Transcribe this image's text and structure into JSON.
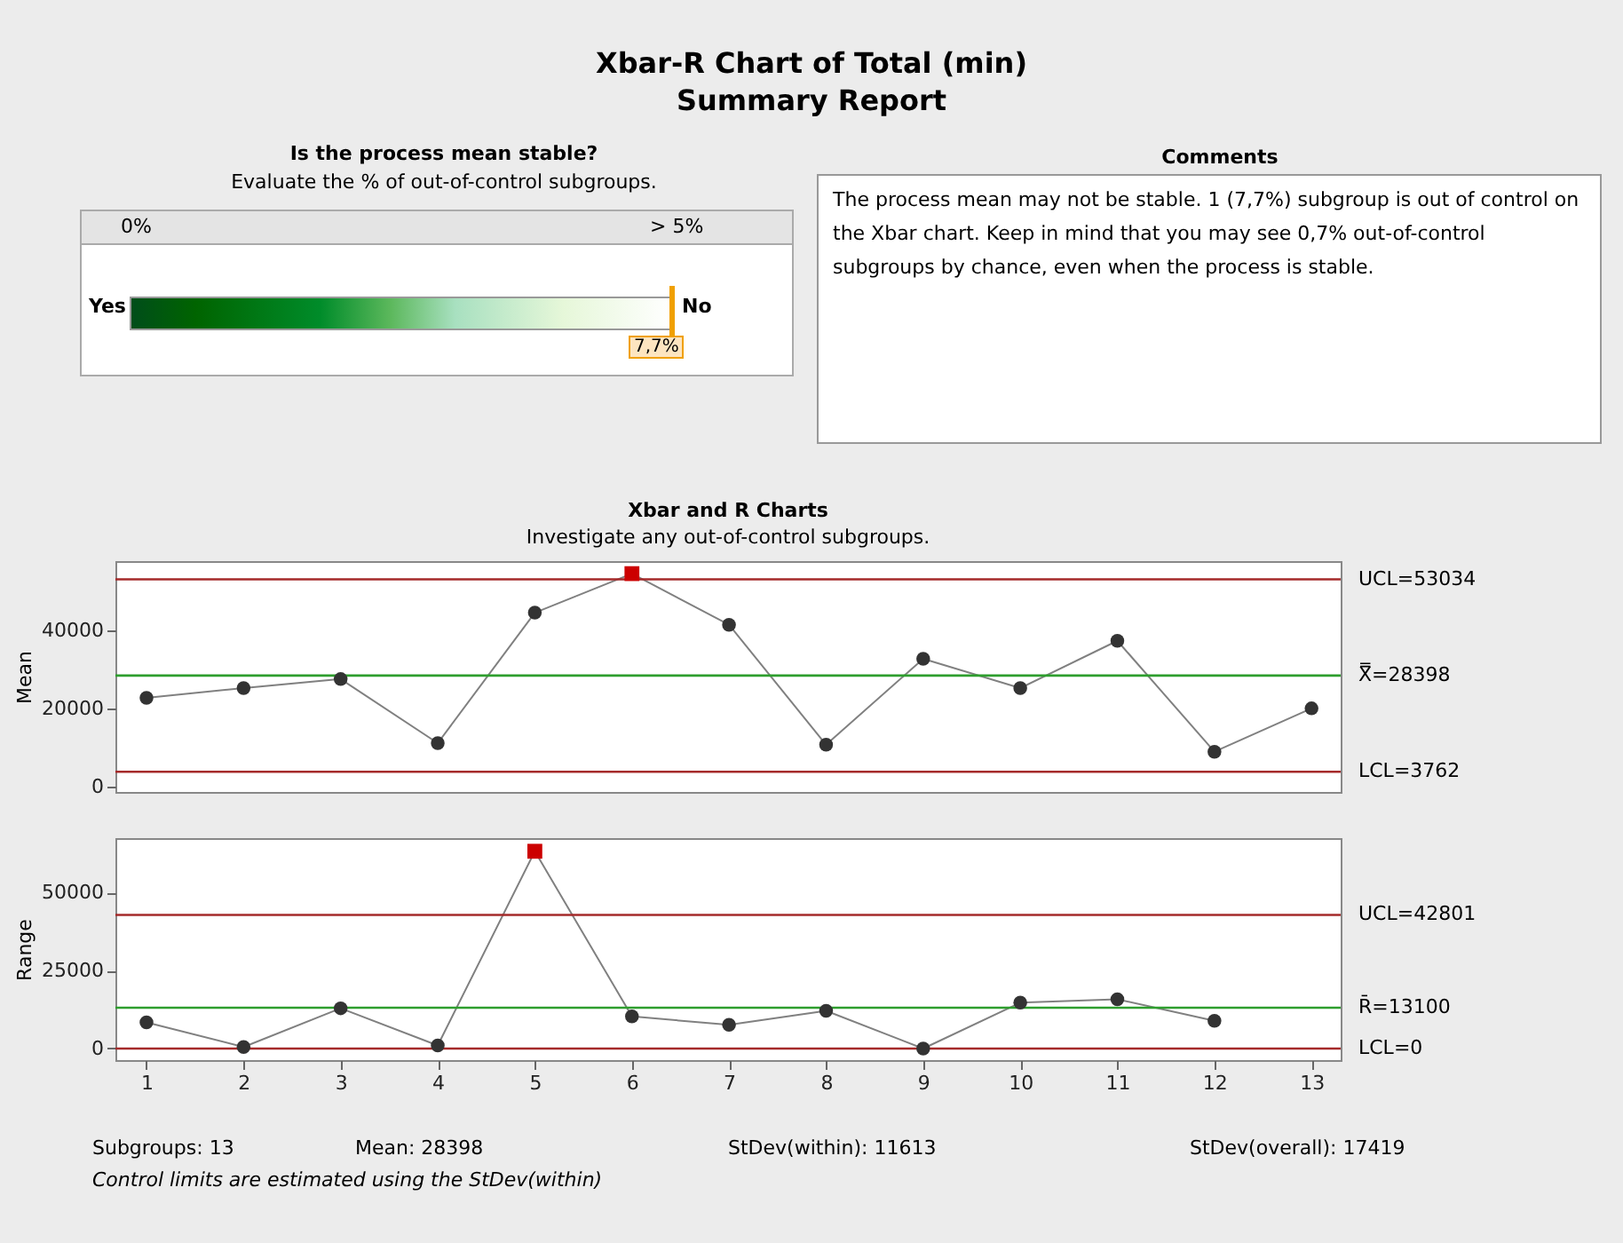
{
  "chart_data": [
    {
      "type": "other",
      "title": "Xbar-R Chart of Total (min)",
      "subtitle": "Summary Report"
    },
    {
      "type": "other",
      "title": "Is the process mean stable?",
      "subtitle": "Evaluate the % of out-of-control subgroups.",
      "annotations": [
        "0%",
        "> 5%",
        "Yes",
        "No",
        "7,7%"
      ]
    },
    {
      "type": "other",
      "title": "Comments",
      "annotations": [
        "The process mean may not be stable. 1 (7,7%) subgroup is out of control on the Xbar chart. Keep in mind that you may see 0,7% out-of-control subgroups by chance, even when the process is stable."
      ]
    },
    {
      "type": "line",
      "title": "Xbar and R Charts",
      "subtitle": "Investigate any out-of-control subgroups.",
      "ylabel": "Mean",
      "x": [
        1,
        2,
        3,
        4,
        5,
        6,
        7,
        8,
        9,
        10,
        11,
        12,
        13
      ],
      "xlim": [
        0.68,
        13.3
      ],
      "xticks": [
        1,
        2,
        3,
        4,
        5,
        6,
        7,
        8,
        9,
        10,
        11,
        12,
        13
      ],
      "ylim": [
        -1400,
        57700
      ],
      "yticks": [
        0,
        20000,
        40000
      ],
      "tick_labels": "y",
      "series": [
        {
          "type": "line",
          "color": "#808080",
          "marker": "none",
          "values": [
            22700,
            25200,
            27500,
            11100,
            44500,
            54500,
            41400,
            10700,
            32700,
            25200,
            37300,
            8900,
            20000
          ]
        },
        {
          "type": "scatter",
          "color": "#333333",
          "marker": "circle",
          "x": [
            1,
            2,
            3,
            4,
            5,
            7,
            8,
            9,
            10,
            11,
            12,
            13
          ],
          "values": [
            22700,
            25200,
            27500,
            11100,
            44500,
            41400,
            10700,
            32700,
            25200,
            37300,
            8900,
            20000
          ]
        },
        {
          "type": "scatter",
          "color": "#cc0000",
          "marker": "square",
          "x": [
            6
          ],
          "values": [
            54500
          ]
        }
      ],
      "ref_lines": [
        {
          "axis": "y",
          "value": 53034,
          "label": "UCL=53034",
          "color": "#a52a2a"
        },
        {
          "axis": "y",
          "value": 28398,
          "label": "X̿=28398",
          "color": "#2e9e2e"
        },
        {
          "axis": "y",
          "value": 3762,
          "label": "LCL=3762",
          "color": "#a52a2a"
        }
      ]
    },
    {
      "type": "line",
      "ylabel": "Range",
      "xlim": [
        0.68,
        13.3
      ],
      "xticks": [
        1,
        2,
        3,
        4,
        5,
        6,
        7,
        8,
        9,
        10,
        11,
        12,
        13
      ],
      "ylim": [
        -3700,
        67400
      ],
      "yticks": [
        0,
        25000,
        50000
      ],
      "series": [
        {
          "type": "line",
          "color": "#808080",
          "marker": "none",
          "x": [
            1,
            2,
            3,
            4,
            5,
            6,
            7,
            8,
            9,
            10,
            11,
            12
          ],
          "values": [
            8400,
            500,
            12900,
            1000,
            63200,
            10300,
            7600,
            12100,
            0,
            14700,
            15800,
            8900
          ]
        },
        {
          "type": "scatter",
          "color": "#333333",
          "marker": "circle",
          "x": [
            1,
            2,
            3,
            4,
            6,
            7,
            8,
            9,
            10,
            11,
            12
          ],
          "values": [
            8400,
            500,
            12900,
            1000,
            10300,
            7600,
            12100,
            0,
            14700,
            15800,
            8900
          ]
        },
        {
          "type": "scatter",
          "color": "#cc0000",
          "marker": "square",
          "x": [
            5
          ],
          "values": [
            63200
          ]
        }
      ],
      "ref_lines": [
        {
          "axis": "y",
          "value": 42801,
          "label": "UCL=42801",
          "color": "#a52a2a"
        },
        {
          "axis": "y",
          "value": 13100,
          "label": "R̄=13100",
          "color": "#2e9e2e"
        },
        {
          "axis": "y",
          "value": 0,
          "label": "LCL=0",
          "color": "#a52a2a"
        }
      ],
      "annotations": [
        "Subgroups: 13",
        "Mean: 28398",
        "StDev(within): 11613",
        "StDev(overall): 17419",
        "Control limits are estimated using the StDev(within)"
      ]
    }
  ]
}
